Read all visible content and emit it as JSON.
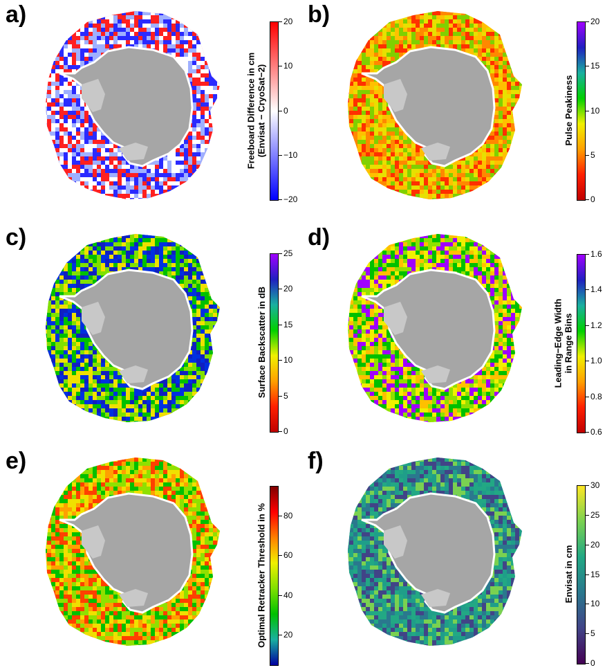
{
  "panels": [
    {
      "label": "a)",
      "colorbar": {
        "title_lines": [
          "Freeboard Difference in cm",
          "(Envisat − CryoSat−2)"
        ],
        "min": -20,
        "max": 20,
        "ticks": [
          "20",
          "10",
          "0",
          "−10",
          "−20"
        ],
        "tick_values": [
          20,
          10,
          0,
          -10,
          -20
        ],
        "colors": [
          "#ff0000",
          "#ffffff",
          "#0000ff"
        ]
      },
      "palette": [
        "#ff2020",
        "#ffffff",
        "#2a2aff",
        "#9fb0ff"
      ]
    },
    {
      "label": "b)",
      "colorbar": {
        "title_lines": [
          "Pulse Peakiness"
        ],
        "min": 0,
        "max": 20,
        "ticks": [
          "20",
          "15",
          "10",
          "5",
          "0"
        ],
        "tick_values": [
          20,
          15,
          10,
          5,
          0
        ],
        "colors": [
          "#a000ff",
          "#2020c0",
          "#1ab0a0",
          "#00d000",
          "#f0f000",
          "#ffa000",
          "#ff2000",
          "#c00000"
        ]
      },
      "palette": [
        "#ff8800",
        "#ffc000",
        "#e8e000",
        "#80d000",
        "#ff3000"
      ]
    },
    {
      "label": "c)",
      "colorbar": {
        "title_lines": [
          "Surface Backscatter in dB"
        ],
        "min": 0,
        "max": 25,
        "ticks": [
          "25",
          "20",
          "15",
          "10",
          "5",
          "0"
        ],
        "tick_values": [
          25,
          20,
          15,
          10,
          5,
          0
        ],
        "colors": [
          "#a000ff",
          "#2020c0",
          "#1ab0a0",
          "#00d000",
          "#f0f000",
          "#ffa000",
          "#ff2000",
          "#c00000"
        ]
      },
      "palette": [
        "#1020c0",
        "#0030e0",
        "#00c000",
        "#80e000",
        "#f0e000"
      ]
    },
    {
      "label": "d)",
      "colorbar": {
        "title_lines": [
          "Leading−Edge Width",
          "in Range Bins"
        ],
        "min": 0.6,
        "max": 1.6,
        "ticks": [
          "1.6",
          "1.4",
          "1.2",
          "1.0",
          "0.8",
          "0.6"
        ],
        "tick_values": [
          1.6,
          1.4,
          1.2,
          1.0,
          0.8,
          0.6
        ],
        "colors": [
          "#a000ff",
          "#2020c0",
          "#1ab0a0",
          "#00d000",
          "#f0f000",
          "#ffa000",
          "#ff2000",
          "#c00000"
        ]
      },
      "palette": [
        "#f0f000",
        "#ffc000",
        "#90e000",
        "#00c000",
        "#a000ff"
      ]
    },
    {
      "label": "e)",
      "colorbar": {
        "title_lines": [
          "Optimal Retracker Threshold in %"
        ],
        "min": 5,
        "max": 95,
        "ticks": [
          "80",
          "60",
          "40",
          "20"
        ],
        "tick_values": [
          80,
          60,
          40,
          20
        ],
        "colors": [
          "#800000",
          "#ff0000",
          "#ff8000",
          "#f0f000",
          "#80e000",
          "#00c000",
          "#1ab0a0",
          "#0000a0"
        ]
      },
      "palette": [
        "#ffa000",
        "#f0e000",
        "#90e000",
        "#ff4000",
        "#00c000"
      ]
    },
    {
      "label": "f)",
      "colorbar": {
        "title_lines": [
          "Envisat in cm"
        ],
        "min": 0,
        "max": 30,
        "ticks": [
          "30",
          "25",
          "20",
          "15",
          "10",
          "5",
          "0"
        ],
        "tick_values": [
          30,
          25,
          20,
          15,
          10,
          5,
          0
        ],
        "colors": [
          "#fde725",
          "#7ad151",
          "#22a884",
          "#2a788e",
          "#414487",
          "#440154"
        ]
      },
      "palette": [
        "#2a788e",
        "#22a884",
        "#414487",
        "#7ad151",
        "#1f9e89"
      ]
    }
  ]
}
